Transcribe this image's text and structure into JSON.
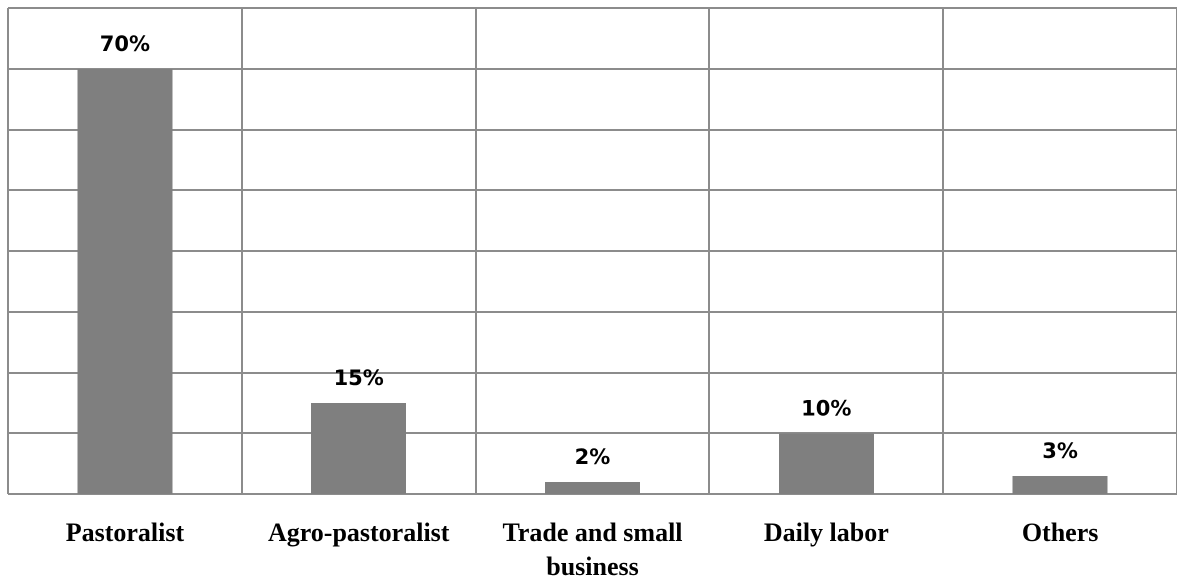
{
  "chart_data": {
    "type": "bar",
    "categories": [
      "Pastoralist",
      "Agro-pastoralist",
      "Trade and small business",
      "Daily labor",
      "Others"
    ],
    "category_label_lines": [
      [
        "Pastoralist"
      ],
      [
        "Agro-pastoralist"
      ],
      [
        "Trade and small",
        "business"
      ],
      [
        "Daily labor"
      ],
      [
        "Others"
      ]
    ],
    "values": [
      70,
      15,
      2,
      10,
      3
    ],
    "data_labels": [
      "70%",
      "15%",
      "2%",
      "10%",
      "3%"
    ],
    "title": "",
    "xlabel": "",
    "ylabel": "",
    "ylim": [
      0,
      80
    ],
    "ytick_step": 10,
    "grid": true,
    "show_y_tick_labels": false,
    "bar_color": "#7f7f7f",
    "grid_color": "#8c8c8c"
  }
}
